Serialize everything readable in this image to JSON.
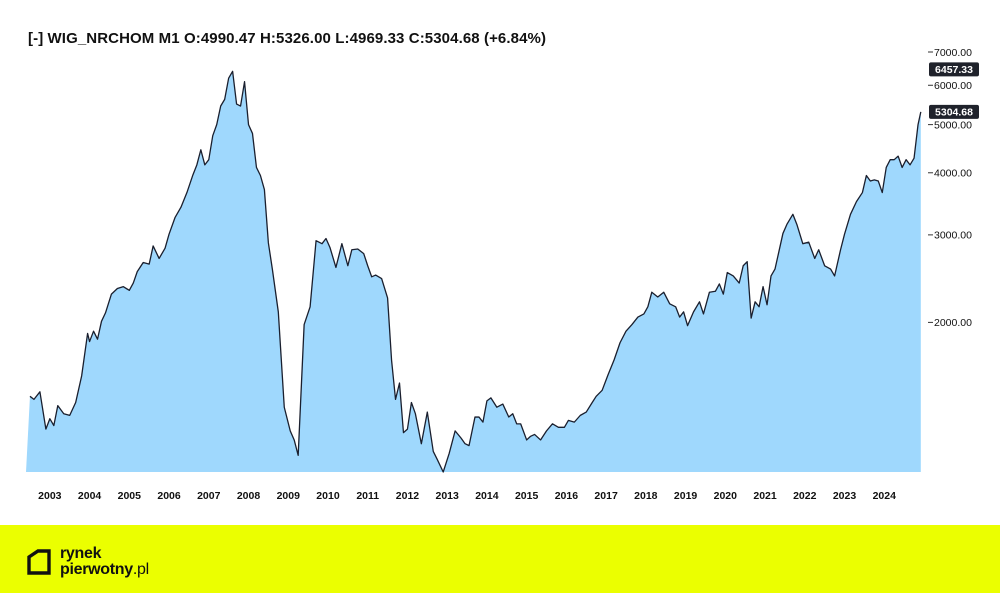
{
  "title": "[-] WIG_NRCHOM M1 O:4990.47 H:5326.00 L:4969.33 C:5304.68 (+6.84%)",
  "colors": {
    "fill": "#9fd8fd",
    "line": "#1a1f2e",
    "badge": "#1f222b",
    "footer": "#ebff00"
  },
  "footer": {
    "logo_line1": "rynek",
    "logo_line2_main": "pierwotny",
    "logo_line2_tld": ".pl"
  },
  "chart_data": {
    "type": "area",
    "title": "[-] WIG_NRCHOM M1 O:4990.47 H:5326.00 L:4969.33 C:5304.68 (+6.84%)",
    "xlabel": "",
    "ylabel": "",
    "y_scale": "log",
    "ylim": [
      1000,
      7400
    ],
    "y_ticks": [
      2000,
      3000,
      4000,
      5000,
      6000,
      7000
    ],
    "y_tick_labels": [
      "2000.00",
      "3000.00",
      "4000.00",
      "5000.00",
      "6000.00",
      "7000.00"
    ],
    "x_ticks": [
      2003,
      2004,
      2005,
      2006,
      2007,
      2008,
      2009,
      2010,
      2011,
      2012,
      2013,
      2014,
      2015,
      2016,
      2017,
      2018,
      2019,
      2020,
      2021,
      2022,
      2023,
      2024
    ],
    "x_tick_labels": [
      "2003",
      "2004",
      "2005",
      "2006",
      "2007",
      "2008",
      "2009",
      "2010",
      "2011",
      "2012",
      "2013",
      "2014",
      "2015",
      "2016",
      "2017",
      "2018",
      "2019",
      "2020",
      "2021",
      "2022",
      "2023",
      "2024"
    ],
    "xlim": [
      2002.4,
      2024.95
    ],
    "grid": false,
    "price_labels": [
      {
        "value": 6457.33,
        "label": "6457.33"
      },
      {
        "value": 5304.68,
        "label": "5304.68"
      }
    ],
    "series": [
      {
        "x": [
          2002.5,
          2002.6,
          2002.75,
          2002.9,
          2003.0,
          2003.1,
          2003.2,
          2003.35,
          2003.5,
          2003.65,
          2003.8,
          2003.95,
          2004.0,
          2004.1,
          2004.2,
          2004.3,
          2004.4,
          2004.55,
          2004.7,
          2004.85,
          2005.0,
          2005.1,
          2005.2,
          2005.35,
          2005.5,
          2005.6,
          2005.75,
          2005.9,
          2006.0,
          2006.15,
          2006.3,
          2006.45,
          2006.6,
          2006.7,
          2006.8,
          2006.9,
          2007.0,
          2007.1,
          2007.2,
          2007.3,
          2007.4,
          2007.5,
          2007.6,
          2007.7,
          2007.8,
          2007.9,
          2008.0,
          2008.1,
          2008.2,
          2008.3,
          2008.4,
          2008.5,
          2008.6,
          2008.75,
          2008.9,
          2009.05,
          2009.15,
          2009.25,
          2009.4,
          2009.55,
          2009.7,
          2009.85,
          2009.95,
          2010.05,
          2010.2,
          2010.35,
          2010.5,
          2010.6,
          2010.75,
          2010.9,
          2011.0,
          2011.1,
          2011.2,
          2011.35,
          2011.5,
          2011.6,
          2011.7,
          2011.8,
          2011.9,
          2012.0,
          2012.1,
          2012.2,
          2012.35,
          2012.5,
          2012.65,
          2012.75,
          2012.9,
          2013.05,
          2013.2,
          2013.35,
          2013.45,
          2013.55,
          2013.7,
          2013.8,
          2013.9,
          2014.0,
          2014.1,
          2014.25,
          2014.4,
          2014.55,
          2014.65,
          2014.75,
          2014.85,
          2015.0,
          2015.1,
          2015.2,
          2015.35,
          2015.5,
          2015.65,
          2015.8,
          2015.95,
          2016.05,
          2016.2,
          2016.35,
          2016.5,
          2016.65,
          2016.75,
          2016.9,
          2017.05,
          2017.2,
          2017.35,
          2017.5,
          2017.65,
          2017.8,
          2017.95,
          2018.05,
          2018.15,
          2018.3,
          2018.45,
          2018.6,
          2018.75,
          2018.85,
          2018.95,
          2019.05,
          2019.2,
          2019.35,
          2019.45,
          2019.6,
          2019.75,
          2019.85,
          2019.95,
          2020.05,
          2020.2,
          2020.35,
          2020.45,
          2020.55,
          2020.65,
          2020.75,
          2020.85,
          2020.95,
          2021.05,
          2021.15,
          2021.25,
          2021.35,
          2021.45,
          2021.55,
          2021.7,
          2021.8,
          2021.95,
          2022.1,
          2022.25,
          2022.35,
          2022.5,
          2022.65,
          2022.75,
          2022.9,
          2023.0,
          2023.15,
          2023.3,
          2023.45,
          2023.55,
          2023.65,
          2023.75,
          2023.85,
          2023.95,
          2024.05,
          2024.15,
          2024.25,
          2024.35,
          2024.45,
          2024.55,
          2024.65,
          2024.75,
          2024.85,
          2024.92
        ],
        "values": [
          1420,
          1400,
          1450,
          1220,
          1280,
          1240,
          1360,
          1310,
          1300,
          1380,
          1560,
          1900,
          1830,
          1920,
          1850,
          2010,
          2090,
          2280,
          2340,
          2360,
          2320,
          2400,
          2530,
          2640,
          2620,
          2850,
          2690,
          2820,
          3010,
          3250,
          3410,
          3650,
          3960,
          4150,
          4450,
          4150,
          4250,
          4750,
          5000,
          5450,
          5620,
          6200,
          6400,
          5500,
          5450,
          6100,
          5000,
          4800,
          4100,
          3950,
          3700,
          2890,
          2560,
          2100,
          1350,
          1210,
          1160,
          1080,
          1980,
          2150,
          2920,
          2880,
          2950,
          2830,
          2580,
          2880,
          2600,
          2800,
          2810,
          2750,
          2600,
          2470,
          2490,
          2450,
          2240,
          1680,
          1400,
          1510,
          1200,
          1220,
          1380,
          1310,
          1140,
          1320,
          1100,
          1060,
          1000,
          1090,
          1210,
          1170,
          1140,
          1130,
          1290,
          1290,
          1260,
          1390,
          1410,
          1350,
          1370,
          1290,
          1310,
          1250,
          1250,
          1160,
          1180,
          1190,
          1160,
          1210,
          1250,
          1230,
          1230,
          1270,
          1260,
          1300,
          1320,
          1380,
          1420,
          1460,
          1570,
          1680,
          1820,
          1920,
          1980,
          2050,
          2080,
          2150,
          2300,
          2250,
          2300,
          2180,
          2150,
          2050,
          2100,
          1970,
          2100,
          2200,
          2080,
          2300,
          2310,
          2390,
          2280,
          2520,
          2480,
          2400,
          2600,
          2650,
          2040,
          2200,
          2150,
          2360,
          2170,
          2480,
          2560,
          2780,
          3020,
          3150,
          3300,
          3150,
          2880,
          2900,
          2690,
          2800,
          2600,
          2560,
          2480,
          2800,
          3010,
          3300,
          3500,
          3650,
          3950,
          3850,
          3870,
          3850,
          3650,
          4100,
          4250,
          4250,
          4320,
          4100,
          4250,
          4150,
          4280,
          5000,
          5304.68
        ]
      }
    ]
  }
}
